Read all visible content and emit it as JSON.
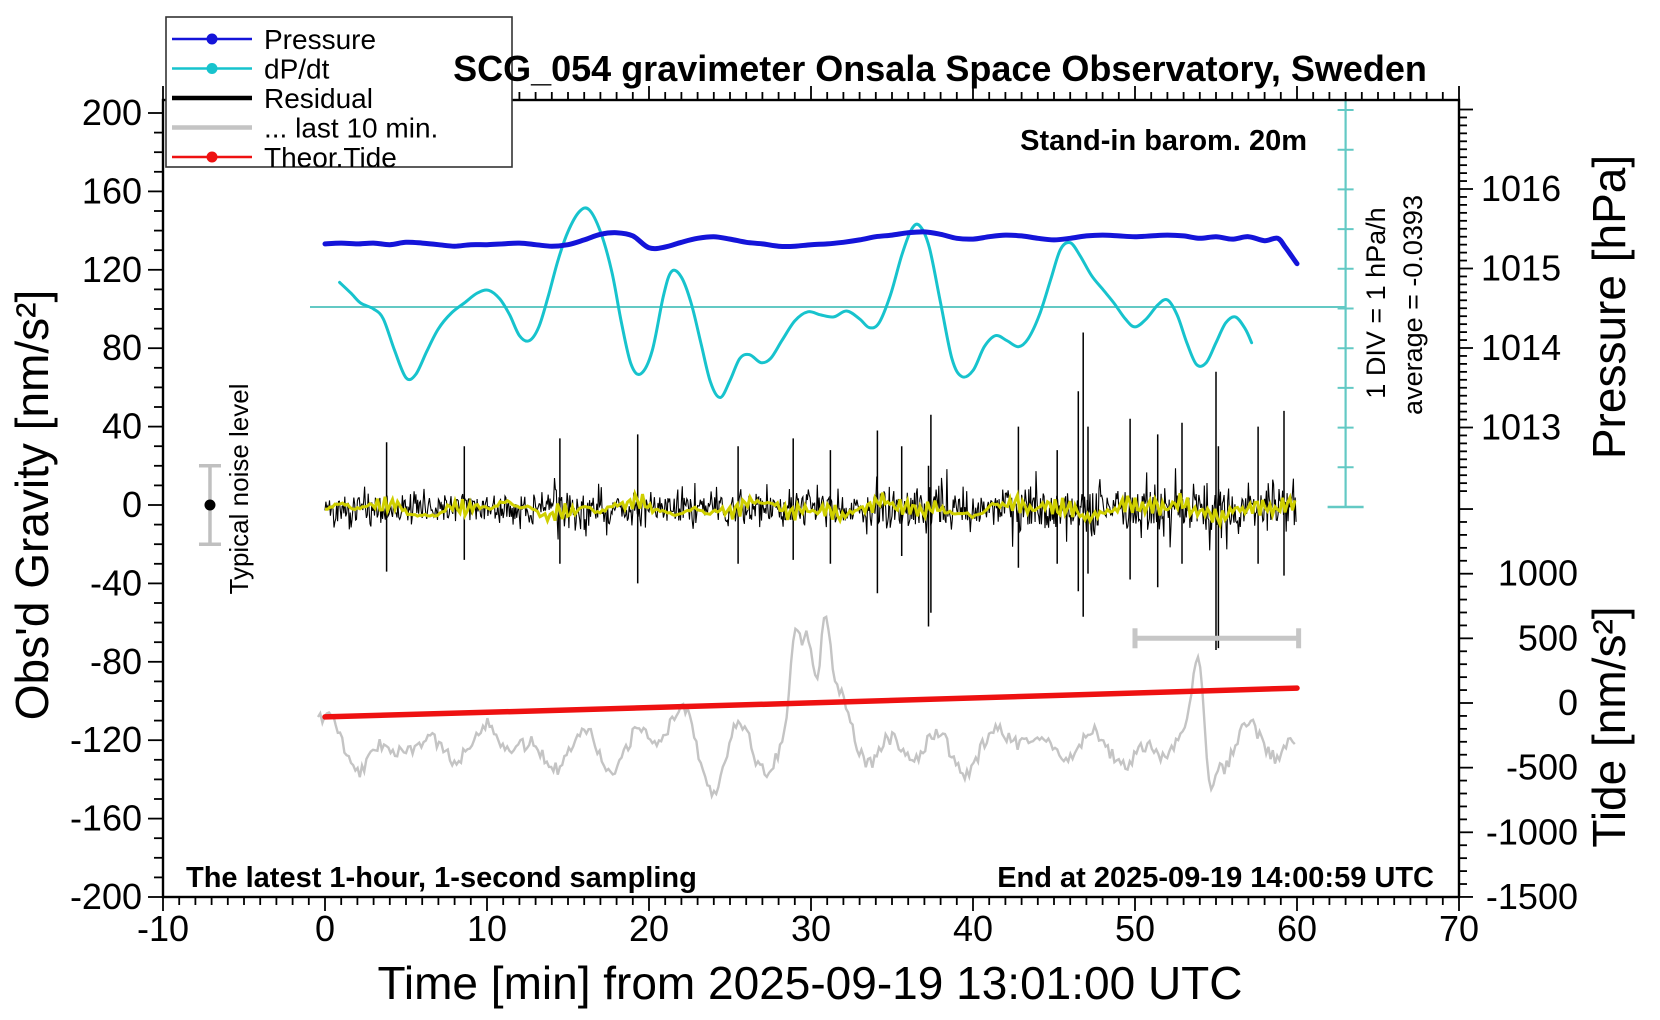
{
  "title": "SCG_054 gravimeter Onsala Space Observatory, Sweden",
  "legend": {
    "items": [
      {
        "id": "pressure",
        "label": "Pressure",
        "color": "#1414d9",
        "marker": true,
        "width": 2.5
      },
      {
        "id": "dpdt",
        "label": "dP/dt",
        "color": "#17c3cd",
        "marker": true,
        "width": 2.5
      },
      {
        "id": "residual",
        "label": "Residual",
        "color": "#000000",
        "marker": false,
        "width": 4.5
      },
      {
        "id": "last10",
        "label": "... last 10 min.",
        "color": "#c4c4c4",
        "marker": false,
        "width": 4.5
      },
      {
        "id": "theortide",
        "label": "Theor.Tide",
        "color": "#ee1111",
        "marker": true,
        "width": 2.5
      }
    ]
  },
  "annotations": {
    "standin_barom": "Stand-in barom. 20m",
    "div_scale": "1 DIV = 1 hPa/h",
    "average": "average = -0.0393",
    "noise_level": "Typical noise level",
    "sampling": "The latest 1-hour, 1-second sampling",
    "end_time": "End at 2025-09-19 14:00:59 UTC"
  },
  "axes": {
    "x": {
      "label": "Time [min] from 2025-09-19 13:01:00 UTC",
      "min": -10,
      "max": 70,
      "minor_step": 1,
      "major_step": 10,
      "tick_labels": [
        -10,
        0,
        10,
        20,
        30,
        40,
        50,
        60,
        70
      ]
    },
    "gravity": {
      "label": "Obs'd Gravity [nm/s²]",
      "min": -200,
      "max": 200,
      "minor_step": 10,
      "major_step": 40,
      "tick_labels": [
        200,
        160,
        120,
        80,
        40,
        0,
        -40,
        -80,
        -120,
        -160,
        -200
      ]
    },
    "pressure": {
      "label": "Pressure [hPa]",
      "minor_step": 0.1,
      "major_step": 1,
      "tick_labels": [
        1016,
        1015,
        1014,
        1013
      ]
    },
    "tide": {
      "label": "Tide [nm/s²]",
      "minor_step": 100,
      "major_step": 500,
      "tick_labels": [
        1000,
        500,
        0,
        -500,
        -1000,
        -1500
      ]
    }
  },
  "chart_data": {
    "type": "line",
    "title": "SCG_054 gravimeter Onsala Space Observatory, Sweden",
    "xlabel": "Time [min] from 2025-09-19 13:01:00 UTC",
    "x_range": [
      -10,
      70
    ],
    "gravity_range": [
      -200,
      200
    ],
    "pressure_labeled_range": [
      1013,
      1016
    ],
    "tide_labeled_range": [
      -1500,
      1000
    ],
    "legend_position": "top-left",
    "grid": false,
    "series": [
      {
        "name": "Pressure",
        "units": "hPa",
        "color": "#1414d9",
        "points": [
          [
            0,
            1015.31
          ],
          [
            1,
            1015.32
          ],
          [
            2,
            1015.31
          ],
          [
            3,
            1015.32
          ],
          [
            4,
            1015.3
          ],
          [
            5,
            1015.33
          ],
          [
            6,
            1015.32
          ],
          [
            7,
            1015.3
          ],
          [
            8,
            1015.28
          ],
          [
            9,
            1015.3
          ],
          [
            10,
            1015.3
          ],
          [
            11,
            1015.31
          ],
          [
            12,
            1015.32
          ],
          [
            13,
            1015.3
          ],
          [
            14,
            1015.28
          ],
          [
            15,
            1015.3
          ],
          [
            16,
            1015.36
          ],
          [
            17,
            1015.43
          ],
          [
            18,
            1015.45
          ],
          [
            19,
            1015.41
          ],
          [
            20,
            1015.26
          ],
          [
            21,
            1015.27
          ],
          [
            22,
            1015.33
          ],
          [
            23,
            1015.38
          ],
          [
            24,
            1015.4
          ],
          [
            25,
            1015.37
          ],
          [
            26,
            1015.33
          ],
          [
            27,
            1015.31
          ],
          [
            28,
            1015.28
          ],
          [
            29,
            1015.28
          ],
          [
            30,
            1015.3
          ],
          [
            31,
            1015.31
          ],
          [
            32,
            1015.33
          ],
          [
            33,
            1015.36
          ],
          [
            34,
            1015.4
          ],
          [
            35,
            1015.42
          ],
          [
            36,
            1015.45
          ],
          [
            37,
            1015.46
          ],
          [
            38,
            1015.43
          ],
          [
            39,
            1015.38
          ],
          [
            40,
            1015.37
          ],
          [
            41,
            1015.4
          ],
          [
            42,
            1015.42
          ],
          [
            43,
            1015.41
          ],
          [
            44,
            1015.38
          ],
          [
            45,
            1015.36
          ],
          [
            46,
            1015.38
          ],
          [
            47,
            1015.41
          ],
          [
            48,
            1015.42
          ],
          [
            49,
            1015.41
          ],
          [
            50,
            1015.4
          ],
          [
            51,
            1015.41
          ],
          [
            52,
            1015.42
          ],
          [
            53,
            1015.41
          ],
          [
            54,
            1015.38
          ],
          [
            55,
            1015.4
          ],
          [
            56,
            1015.37
          ],
          [
            57,
            1015.4
          ],
          [
            58,
            1015.35
          ],
          [
            58.8,
            1015.38
          ],
          [
            59.3,
            1015.26
          ],
          [
            60,
            1015.06
          ]
        ]
      },
      {
        "name": "dP/dt",
        "units": "hPa/h",
        "color": "#17c3cd",
        "average": -0.0393,
        "div_equals": "1 hPa/h",
        "points": [
          [
            0.9,
            0.62
          ],
          [
            1.6,
            0.35
          ],
          [
            2.2,
            0.1
          ],
          [
            3.0,
            -0.05
          ],
          [
            3.6,
            -0.3
          ],
          [
            4.3,
            -1.1
          ],
          [
            5.0,
            -1.78
          ],
          [
            5.6,
            -1.7
          ],
          [
            6.3,
            -1.1
          ],
          [
            7.0,
            -0.55
          ],
          [
            7.8,
            -0.15
          ],
          [
            8.6,
            0.1
          ],
          [
            9.4,
            0.35
          ],
          [
            10.1,
            0.42
          ],
          [
            10.8,
            0.2
          ],
          [
            11.4,
            -0.2
          ],
          [
            12.0,
            -0.72
          ],
          [
            12.6,
            -0.85
          ],
          [
            13.2,
            -0.5
          ],
          [
            13.8,
            0.3
          ],
          [
            14.4,
            1.2
          ],
          [
            15.0,
            1.9
          ],
          [
            15.7,
            2.4
          ],
          [
            16.3,
            2.45
          ],
          [
            17.0,
            1.9
          ],
          [
            17.7,
            0.9
          ],
          [
            18.3,
            -0.4
          ],
          [
            18.9,
            -1.45
          ],
          [
            19.5,
            -1.68
          ],
          [
            20.2,
            -1.1
          ],
          [
            20.9,
            0.3
          ],
          [
            21.4,
            0.9
          ],
          [
            22.0,
            0.75
          ],
          [
            22.6,
            0.1
          ],
          [
            23.2,
            -0.9
          ],
          [
            23.8,
            -1.9
          ],
          [
            24.4,
            -2.28
          ],
          [
            25.0,
            -1.85
          ],
          [
            25.6,
            -1.3
          ],
          [
            26.2,
            -1.2
          ],
          [
            26.9,
            -1.4
          ],
          [
            27.5,
            -1.3
          ],
          [
            28.2,
            -0.85
          ],
          [
            29.0,
            -0.35
          ],
          [
            29.8,
            -0.12
          ],
          [
            30.6,
            -0.2
          ],
          [
            31.4,
            -0.25
          ],
          [
            32.2,
            -0.1
          ],
          [
            33.0,
            -0.3
          ],
          [
            33.6,
            -0.52
          ],
          [
            34.2,
            -0.4
          ],
          [
            34.9,
            0.3
          ],
          [
            35.6,
            1.3
          ],
          [
            36.2,
            1.95
          ],
          [
            36.7,
            2.05
          ],
          [
            37.3,
            1.5
          ],
          [
            38.0,
            0.1
          ],
          [
            38.7,
            -1.3
          ],
          [
            39.3,
            -1.75
          ],
          [
            40.0,
            -1.6
          ],
          [
            40.7,
            -1.0
          ],
          [
            41.4,
            -0.72
          ],
          [
            42.1,
            -0.85
          ],
          [
            42.8,
            -1.0
          ],
          [
            43.4,
            -0.8
          ],
          [
            44.1,
            -0.2
          ],
          [
            44.8,
            0.7
          ],
          [
            45.4,
            1.45
          ],
          [
            46.0,
            1.62
          ],
          [
            46.6,
            1.3
          ],
          [
            47.3,
            0.8
          ],
          [
            48.0,
            0.45
          ],
          [
            48.7,
            0.1
          ],
          [
            49.4,
            -0.3
          ],
          [
            50.0,
            -0.5
          ],
          [
            50.7,
            -0.3
          ],
          [
            51.4,
            0.05
          ],
          [
            52.0,
            0.18
          ],
          [
            52.6,
            -0.2
          ],
          [
            53.2,
            -0.9
          ],
          [
            53.8,
            -1.45
          ],
          [
            54.4,
            -1.4
          ],
          [
            55.0,
            -0.9
          ],
          [
            55.6,
            -0.4
          ],
          [
            56.2,
            -0.25
          ],
          [
            56.8,
            -0.55
          ],
          [
            57.2,
            -0.9
          ]
        ]
      },
      {
        "name": "Theor.Tide",
        "units": "nm/s²",
        "color": "#ee1111",
        "points": [
          [
            0,
            -107
          ],
          [
            15,
            -54
          ],
          [
            30,
            1
          ],
          [
            45,
            58
          ],
          [
            60,
            115
          ]
        ]
      },
      {
        "name": "Residual",
        "units": "nm/s²",
        "color": "#000000",
        "description": "1-second residual noise band",
        "center": -2,
        "typical_amplitude": 18,
        "bursts": [
          [
            12,
            17,
            1.15
          ],
          [
            22,
            27,
            1.1
          ],
          [
            33.2,
            38.5,
            1.5
          ],
          [
            42,
            48,
            1.5
          ],
          [
            49,
            56.5,
            1.6
          ],
          [
            57,
            60,
            1.4
          ]
        ],
        "spikes": [
          [
            3.8,
            32,
            -34
          ],
          [
            8.6,
            30,
            -28
          ],
          [
            14.5,
            34,
            -30
          ],
          [
            19.3,
            36,
            -40
          ],
          [
            25.5,
            30,
            -30
          ],
          [
            28.9,
            34,
            -28
          ],
          [
            31.2,
            28,
            -30
          ],
          [
            34.1,
            38,
            -45
          ],
          [
            35.6,
            30,
            -26
          ],
          [
            37.25,
            20,
            -62
          ],
          [
            37.4,
            46,
            -55
          ],
          [
            42.8,
            40,
            -32
          ],
          [
            45.2,
            28,
            -30
          ],
          [
            46.5,
            58,
            -44
          ],
          [
            46.8,
            88,
            -57
          ],
          [
            47.1,
            40,
            -35
          ],
          [
            49.7,
            44,
            -38
          ],
          [
            51.4,
            36,
            -42
          ],
          [
            52.9,
            42,
            -30
          ],
          [
            55.0,
            68,
            -74
          ],
          [
            55.15,
            30,
            -73
          ],
          [
            57.6,
            40,
            -30
          ],
          [
            59.2,
            48,
            -36
          ]
        ]
      },
      {
        "name": "Residual smoothed",
        "units": "nm/s²",
        "color": "#cfcf00",
        "center": -2,
        "amplitude": 5
      },
      {
        "name": "... last 10 min.",
        "units": "nm/s² (rescaled)",
        "color": "#c4c4c4",
        "center": -123,
        "amplitude": 18,
        "event": {
          "t": 29.8,
          "peak_g": -54,
          "trough_g": -177
        }
      }
    ]
  },
  "markers": {
    "noise_bar": {
      "t": -7.1,
      "g_center": 0,
      "g_half": 20
    },
    "last10_bar": {
      "t1": 50,
      "t2": 60.1,
      "g": -68
    },
    "div_ruler": {
      "t": 63.0,
      "divisions": 10,
      "div_value": "1 hPa/h"
    },
    "dpdt_mean_line": {
      "g": 101
    }
  }
}
